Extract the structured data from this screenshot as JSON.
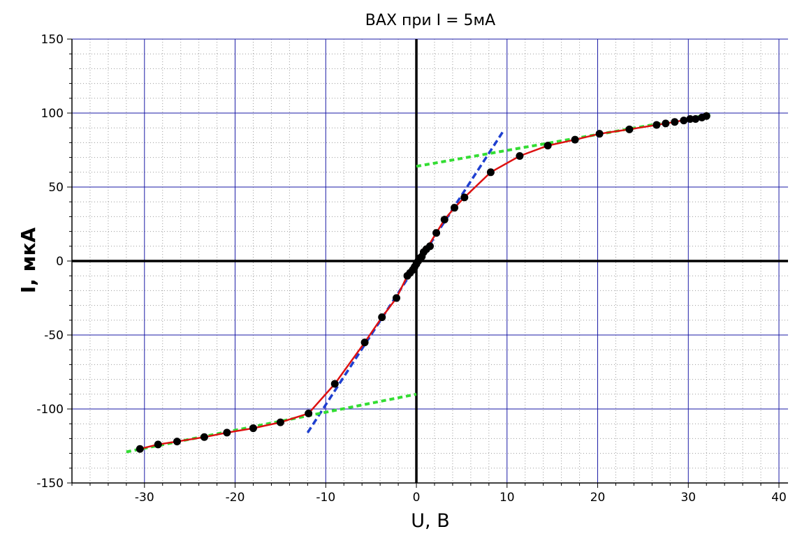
{
  "chart_data": {
    "type": "scatter",
    "title": "ВАХ при I = 5мА",
    "xlabel": "U, B",
    "ylabel": "I, мкА",
    "xlim": [
      -38,
      41
    ],
    "ylim": [
      -150,
      150
    ],
    "x_ticks": [
      -30,
      -20,
      -10,
      0,
      10,
      20,
      30,
      40
    ],
    "y_ticks": [
      -150,
      -100,
      -50,
      0,
      50,
      100,
      150
    ],
    "x_tick_labels": [
      "-30",
      "-20",
      "-10",
      "0",
      "10",
      "20",
      "30",
      "40"
    ],
    "y_tick_labels": [
      "-150",
      "-100",
      "-50",
      "0",
      "50",
      "100",
      "150"
    ],
    "grid": true,
    "colors": {
      "grid_major": "#1a1aa6",
      "grid_minor": "#9a9a9a",
      "curve": "#dd1111",
      "points": "#000000",
      "fit_line_1": "#1e3fd0",
      "fit_lines_2": "#33dd33"
    },
    "series": [
      {
        "style": "points",
        "x": [
          -30.5,
          -28.5,
          -26.4,
          -23.4,
          -20.9,
          -18.0,
          -15.0,
          -11.9,
          -9.0,
          -5.7,
          -3.8,
          -2.2,
          -1.0,
          -0.7,
          -0.4,
          -0.2,
          0.0,
          0.2,
          0.4,
          0.6,
          0.8,
          1.1,
          1.5,
          2.2,
          3.1,
          4.2,
          5.3,
          8.2,
          11.4,
          14.5,
          17.5,
          20.2,
          23.5,
          26.5,
          27.5,
          28.5,
          29.5,
          30.2,
          30.8,
          31.5,
          32.0
        ],
        "y": [
          -127,
          -124,
          -122,
          -119,
          -116,
          -113,
          -109,
          -103,
          -83,
          -55,
          -38,
          -25,
          -10,
          -8,
          -6,
          -4,
          -2,
          0,
          2,
          3,
          6,
          8,
          10,
          19,
          28,
          36,
          43,
          60,
          71,
          78,
          82,
          86,
          89,
          92,
          93,
          94,
          95,
          96,
          96,
          97,
          98
        ]
      },
      {
        "style": "curve",
        "x": [
          -30.5,
          -28.5,
          -26.4,
          -23.4,
          -20.9,
          -18.0,
          -15.0,
          -11.9,
          -9.0,
          -5.7,
          -3.8,
          -2.2,
          -1.0,
          0.0,
          1.1,
          2.2,
          3.1,
          4.2,
          5.3,
          8.2,
          11.4,
          14.5,
          17.5,
          20.2,
          23.5,
          26.5,
          28.5,
          30.2,
          32.0
        ],
        "y": [
          -127,
          -124,
          -122,
          -119,
          -116,
          -113,
          -109,
          -103,
          -83,
          -55,
          -38,
          -25,
          -10,
          -2,
          8,
          19,
          28,
          36,
          43,
          60,
          71,
          78,
          82,
          86,
          89,
          92,
          94,
          96,
          98
        ]
      },
      {
        "style": "fit-line-1",
        "x": [
          -12.0,
          9.5
        ],
        "y": [
          -116,
          87
        ]
      },
      {
        "style": "fit-line-2",
        "x": [
          -32.0,
          0.0
        ],
        "y": [
          -129,
          -90
        ]
      },
      {
        "style": "fit-line-2",
        "x": [
          0.0,
          32.5
        ],
        "y": [
          64,
          99
        ]
      }
    ]
  }
}
